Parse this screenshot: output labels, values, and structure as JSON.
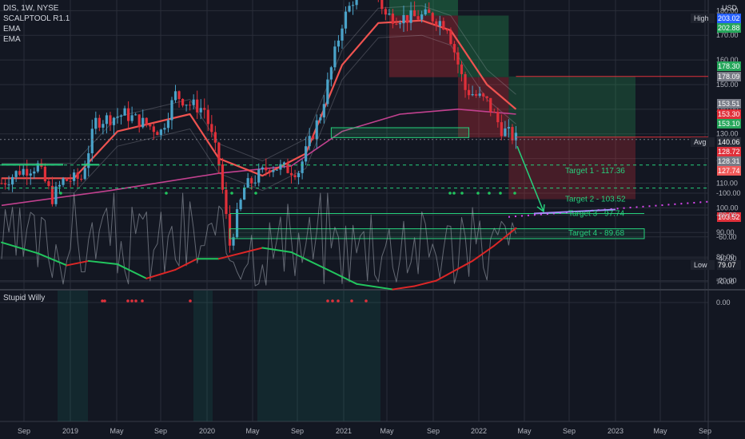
{
  "legend": {
    "symbol": "DIS, 1W, NYSE",
    "indicator1": "SCALPTOOL R1.1",
    "indicator2": "EMA",
    "indicator3": "EMA"
  },
  "currency": "USD",
  "lower_indicator": {
    "title": "Stupid Willy"
  },
  "colors": {
    "background": "#131722",
    "up": "#4aa3c9",
    "down": "#e0303a",
    "ema_fast": "#ef5350",
    "ema_slow": "#c2418f",
    "target": "#26d07c",
    "osc_up": "#22c55e",
    "osc_down": "#dc2626"
  },
  "chart_data": [
    {
      "type": "candlestick",
      "title": "DIS, 1W, NYSE",
      "x_tick_labels": [
        "Sep",
        "2019",
        "May",
        "Sep",
        "2020",
        "May",
        "Sep",
        "2021",
        "May",
        "Sep",
        "2022",
        "May",
        "Sep",
        "2023",
        "May",
        "Sep"
      ],
      "y_tick_labels": [
        "70.00",
        "80.00",
        "90.00",
        "100.00",
        "110.00",
        "120.00",
        "130.00",
        "140.00",
        "150.00",
        "160.00",
        "170.00",
        "180.00",
        "190.00",
        "200.00"
      ],
      "ylim": [
        66,
        212
      ],
      "ohlc_weekly_approx": [
        {
          "week": 0,
          "close": 110
        },
        {
          "week": 5,
          "close": 115
        },
        {
          "week": 10,
          "close": 117
        },
        {
          "week": 14,
          "close": 104
        },
        {
          "week": 17,
          "close": 111
        },
        {
          "week": 22,
          "close": 112
        },
        {
          "week": 26,
          "close": 135
        },
        {
          "week": 34,
          "close": 138
        },
        {
          "week": 44,
          "close": 131
        },
        {
          "week": 48,
          "close": 146
        },
        {
          "week": 52,
          "close": 142
        },
        {
          "week": 56,
          "close": 140
        },
        {
          "week": 60,
          "close": 118
        },
        {
          "week": 63,
          "close": 85
        },
        {
          "week": 67,
          "close": 108
        },
        {
          "week": 74,
          "close": 117
        },
        {
          "week": 82,
          "close": 115
        },
        {
          "week": 88,
          "close": 138
        },
        {
          "week": 94,
          "close": 175
        },
        {
          "week": 101,
          "close": 197
        },
        {
          "week": 106,
          "close": 178
        },
        {
          "week": 112,
          "close": 177
        },
        {
          "week": 118,
          "close": 178
        },
        {
          "week": 123,
          "close": 174
        },
        {
          "week": 128,
          "close": 148
        },
        {
          "week": 134,
          "close": 143
        },
        {
          "week": 138,
          "close": 132
        },
        {
          "week": 142,
          "close": 128
        }
      ],
      "ema_fast": [
        [
          0,
          112
        ],
        [
          20,
          112
        ],
        [
          32,
          131
        ],
        [
          52,
          138
        ],
        [
          60,
          120
        ],
        [
          72,
          113
        ],
        [
          84,
          122
        ],
        [
          94,
          158
        ],
        [
          104,
          175
        ],
        [
          116,
          176
        ],
        [
          124,
          172
        ],
        [
          134,
          150
        ],
        [
          142,
          140
        ]
      ],
      "ema_slow": [
        [
          0,
          101
        ],
        [
          30,
          107
        ],
        [
          60,
          114
        ],
        [
          80,
          117
        ],
        [
          94,
          131
        ],
        [
          110,
          138
        ],
        [
          126,
          140
        ],
        [
          142,
          138
        ]
      ],
      "price_labels": [
        {
          "label": "High",
          "value": "203.02"
        },
        {
          "value": "202.88"
        },
        {
          "value": "178.30"
        },
        {
          "value": "178.09"
        },
        {
          "value": "153.51"
        },
        {
          "value": "153.30"
        },
        {
          "value": "153.10"
        },
        {
          "label": "Avg",
          "value": "140.06"
        },
        {
          "value": "128.72"
        },
        {
          "value": "128.31"
        },
        {
          "value": "127.74"
        },
        {
          "value": "103.52"
        },
        {
          "label": "Low",
          "value": "79.07"
        }
      ],
      "annotations": [
        {
          "text": "Target 1 - 117.36",
          "value": 117.36
        },
        {
          "text": "Target 2 - 103.52",
          "value": 103.52
        },
        {
          "text": "Target 3 - 97.74",
          "value": 97.74
        },
        {
          "text": "Target 4 - 89.68",
          "value": 89.68
        }
      ]
    },
    {
      "type": "line",
      "title": "Stupid Willy",
      "y_tick_labels": [
        "0.00",
        "-20.00",
        "-40.00",
        "-60.00",
        "-80.00",
        "-100.00"
      ],
      "ylim": [
        -105,
        5
      ],
      "signal_line": [
        [
          0,
          -55
        ],
        [
          10,
          -45
        ],
        [
          18,
          -34
        ],
        [
          24,
          -38
        ],
        [
          32,
          -35
        ],
        [
          40,
          -22
        ],
        [
          48,
          -30
        ],
        [
          54,
          -40
        ],
        [
          60,
          -40
        ],
        [
          72,
          -50
        ],
        [
          80,
          -46
        ],
        [
          90,
          -30
        ],
        [
          98,
          -17
        ],
        [
          108,
          -12
        ],
        [
          114,
          -15
        ],
        [
          120,
          -20
        ],
        [
          130,
          -38
        ],
        [
          136,
          -52
        ],
        [
          142,
          -68
        ]
      ]
    }
  ]
}
